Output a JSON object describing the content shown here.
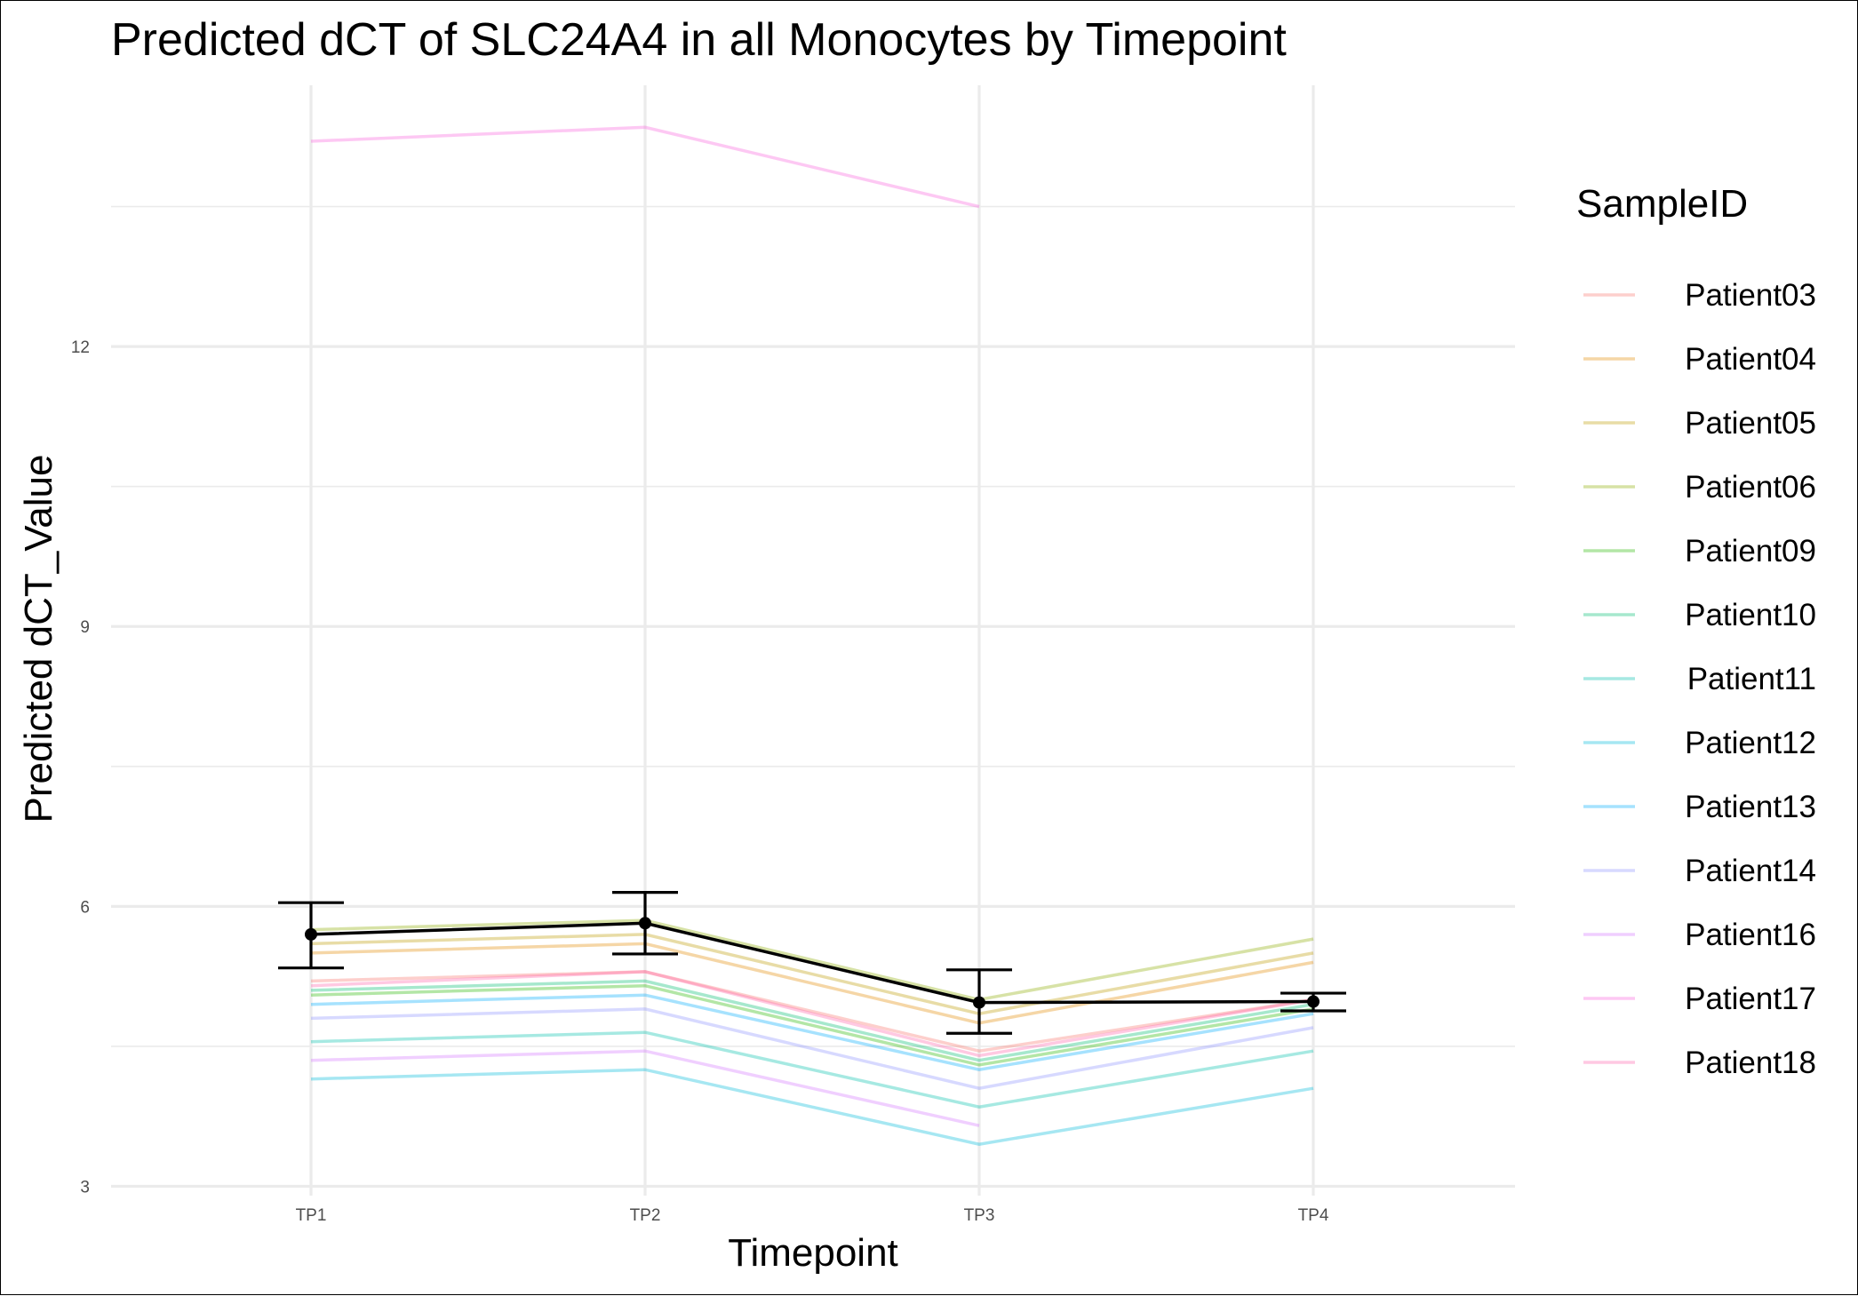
{
  "chart_data": {
    "type": "line",
    "title": "Predicted dCT of  SLC24A4 in  all  Monocytes by Timepoint",
    "xlabel": "Timepoint",
    "ylabel": "Predicted dCT_Value",
    "categories": [
      "TP1",
      "TP2",
      "TP3",
      "TP4"
    ],
    "ylim": [
      2.9,
      14.8
    ],
    "yticks": [
      3,
      6,
      9,
      12
    ],
    "grid": true,
    "legend": {
      "title": "SampleID",
      "position": "right"
    },
    "series": [
      {
        "name": "Patient03",
        "color": "#F8766D",
        "values": [
          5.2,
          5.3,
          4.45,
          5.0
        ]
      },
      {
        "name": "Patient04",
        "color": "#E18A00",
        "values": [
          5.5,
          5.6,
          4.75,
          5.4
        ]
      },
      {
        "name": "Patient05",
        "color": "#BE9C00",
        "values": [
          5.6,
          5.7,
          4.85,
          5.5
        ]
      },
      {
        "name": "Patient06",
        "color": "#8CAB00",
        "values": [
          5.75,
          5.85,
          5.0,
          5.65
        ]
      },
      {
        "name": "Patient09",
        "color": "#24B700",
        "values": [
          5.05,
          5.15,
          4.3,
          4.9
        ]
      },
      {
        "name": "Patient10",
        "color": "#00BE70",
        "values": [
          5.1,
          5.2,
          4.35,
          4.95
        ]
      },
      {
        "name": "Patient11",
        "color": "#00C1AB",
        "values": [
          4.55,
          4.65,
          3.85,
          4.45
        ]
      },
      {
        "name": "Patient12",
        "color": "#00BBDA",
        "values": [
          4.15,
          4.25,
          3.45,
          4.05
        ]
      },
      {
        "name": "Patient13",
        "color": "#00ACFC",
        "values": [
          4.95,
          5.05,
          4.25,
          4.85
        ]
      },
      {
        "name": "Patient14",
        "color": "#8B93FF",
        "values": [
          4.8,
          4.9,
          4.05,
          4.7
        ]
      },
      {
        "name": "Patient16",
        "color": "#D575FE",
        "values": [
          4.35,
          4.45,
          3.65,
          null
        ]
      },
      {
        "name": "Patient17",
        "color": "#F962DD",
        "values": [
          14.2,
          14.35,
          13.5,
          null
        ]
      },
      {
        "name": "Patient18",
        "color": "#FF65AC",
        "values": [
          5.15,
          5.3,
          4.4,
          5.0
        ]
      }
    ],
    "mean": {
      "color": "#000000",
      "values": [
        5.7,
        5.82,
        4.97,
        4.98
      ],
      "error_low": [
        5.34,
        5.49,
        4.64,
        4.88
      ],
      "error_high": [
        6.04,
        6.15,
        5.32,
        5.07
      ]
    }
  }
}
